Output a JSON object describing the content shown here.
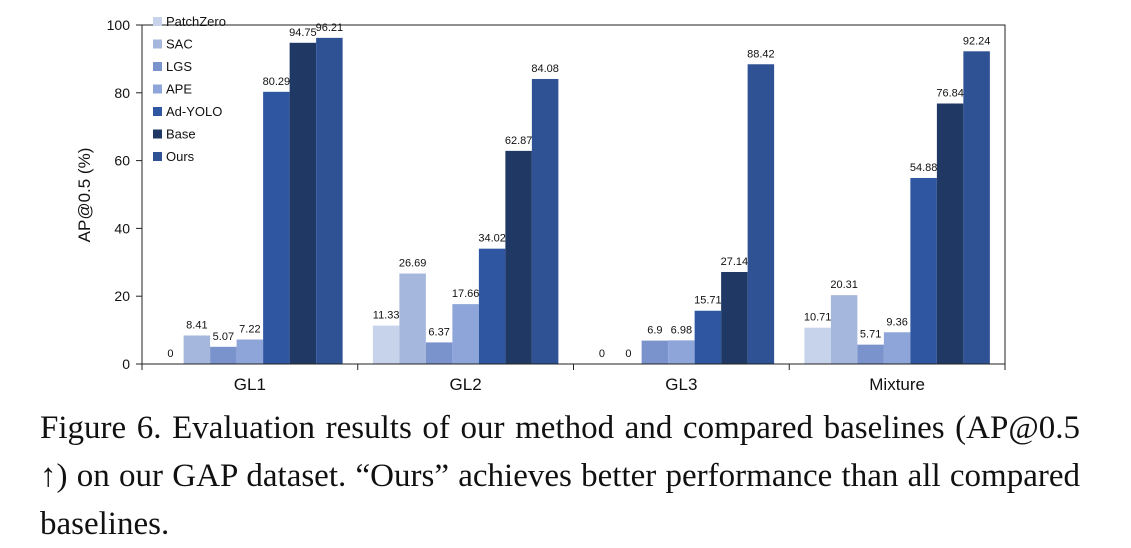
{
  "chart_data": {
    "type": "bar",
    "title": "",
    "xlabel": "",
    "ylabel": "AP@0.5  (%)",
    "ylim": [
      0,
      100
    ],
    "yticks": [
      "0",
      "20",
      "40",
      "60",
      "80",
      "100"
    ],
    "categories": [
      "GL1",
      "GL2",
      "GL3",
      "Mixture"
    ],
    "legend_position": "top-left",
    "series": [
      {
        "name": "PatchZero",
        "color": "#c7d3ea",
        "values": [
          0,
          11.33,
          0,
          10.71
        ],
        "labels": [
          "0",
          "11.33",
          "0",
          "10.71"
        ]
      },
      {
        "name": "SAC",
        "color": "#a6b7de",
        "values": [
          8.41,
          26.69,
          0,
          20.31
        ],
        "labels": [
          "8.41",
          "26.69",
          "0",
          "20.31"
        ]
      },
      {
        "name": "LGS",
        "color": "#7b93cc",
        "values": [
          5.07,
          6.37,
          6.9,
          5.71
        ],
        "labels": [
          "5.07",
          "6.37",
          "6.9",
          "5.71"
        ]
      },
      {
        "name": "APE",
        "color": "#8ea5d9",
        "values": [
          7.22,
          17.66,
          6.98,
          9.36
        ],
        "labels": [
          "7.22",
          "17.66",
          "6.98",
          "9.36"
        ]
      },
      {
        "name": "Ad-YOLO",
        "color": "#2f56a0",
        "values": [
          80.29,
          34.02,
          15.71,
          54.88
        ],
        "labels": [
          "80.29",
          "34.02",
          "15.71",
          "54.88"
        ]
      },
      {
        "name": "Base",
        "color": "#203864",
        "values": [
          94.75,
          62.87,
          27.14,
          76.84
        ],
        "labels": [
          "94.75",
          "62.87",
          "27.14",
          "76.84"
        ]
      },
      {
        "name": "Ours",
        "color": "#2f5295",
        "values": [
          96.21,
          84.08,
          88.42,
          92.24
        ],
        "labels": [
          "96.21",
          "84.08",
          "88.42",
          "92.24"
        ]
      }
    ]
  },
  "caption": {
    "text": "Figure 6. Evaluation results of our method and compared baselines (AP@0.5 ↑) on our GAP dataset. “Ours” achieves better performance than all compared baselines."
  }
}
